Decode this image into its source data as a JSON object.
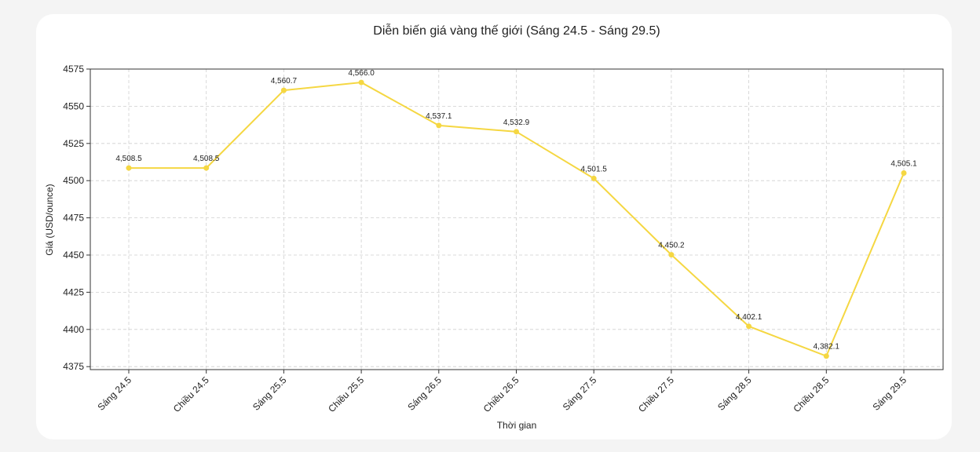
{
  "chart_data": {
    "type": "line",
    "title": "Diễn biến giá vàng thế giới (Sáng 24.5 - Sáng 29.5)",
    "xlabel": "Thời gian",
    "ylabel": "Giá (USD/ounce)",
    "categories": [
      "Sáng 24.5",
      "Chiều 24.5",
      "Sáng 25.5",
      "Chiều 25.5",
      "Sáng 26.5",
      "Chiều 26.5",
      "Sáng 27.5",
      "Chiều 27.5",
      "Sáng 28.5",
      "Chiều 28.5",
      "Sáng 29.5"
    ],
    "values": [
      4508.5,
      4508.5,
      4560.7,
      4566.0,
      4537.1,
      4532.9,
      4501.5,
      4450.2,
      4402.1,
      4382.1,
      4505.1
    ],
    "value_labels": [
      "4,508.5",
      "4,508.5",
      "4,560.7",
      "4,566.0",
      "4,537.1",
      "4,532.9",
      "4,501.5",
      "4,450.2",
      "4,402.1",
      "4,382.1",
      "4,505.1"
    ],
    "yticks": [
      4375,
      4400,
      4425,
      4450,
      4475,
      4500,
      4525,
      4550,
      4575
    ],
    "ylim": [
      4373,
      4575
    ],
    "grid": true,
    "legend": "none",
    "line_color": "#f5d742"
  }
}
